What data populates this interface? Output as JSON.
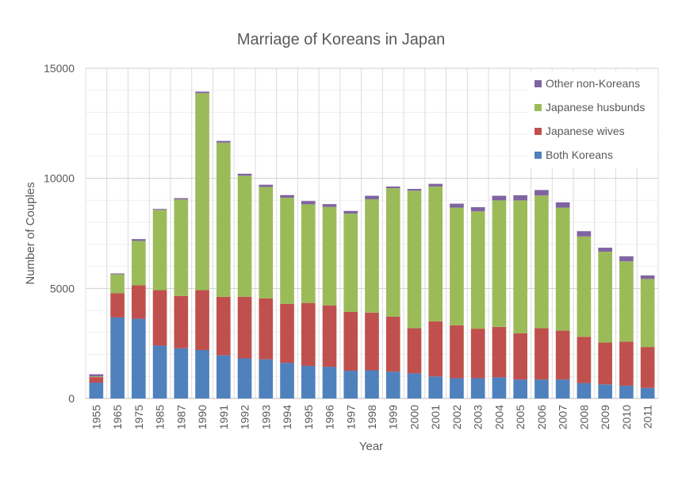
{
  "chart_data": {
    "type": "bar",
    "stacked": true,
    "title": "Marriage of Koreans in Japan",
    "xlabel": "Year",
    "ylabel": "Number of Couples",
    "ylim": [
      0,
      15000
    ],
    "yticks": [
      "0",
      "5000",
      "10000",
      "15000"
    ],
    "grid": true,
    "legend_position": "top-right",
    "categories": [
      "1955",
      "1965",
      "1975",
      "1985",
      "1987",
      "1990",
      "1991",
      "1992",
      "1993",
      "1994",
      "1995",
      "1996",
      "1997",
      "1998",
      "1999",
      "2000",
      "2001",
      "2002",
      "2003",
      "2004",
      "2005",
      "2006",
      "2007",
      "2008",
      "2009",
      "2010",
      "2011"
    ],
    "series": [
      {
        "name": "Both Koreans",
        "color": "#4f81bd",
        "values": [
          720,
          3680,
          3620,
          2400,
          2280,
          2200,
          1960,
          1820,
          1780,
          1620,
          1480,
          1440,
          1260,
          1280,
          1220,
          1140,
          1000,
          920,
          920,
          960,
          860,
          860,
          860,
          700,
          640,
          580,
          480
        ]
      },
      {
        "name": "Japanese wives",
        "color": "#c0504d",
        "values": [
          250,
          1100,
          1520,
          2520,
          2380,
          2720,
          2660,
          2800,
          2770,
          2680,
          2860,
          2790,
          2670,
          2620,
          2500,
          2050,
          2500,
          2400,
          2250,
          2290,
          2100,
          2330,
          2220,
          2100,
          1900,
          2000,
          1860
        ]
      },
      {
        "name": "Japanese husbunds",
        "color": "#9bbb59",
        "values": [
          30,
          860,
          2020,
          3650,
          4380,
          8950,
          7000,
          5500,
          5060,
          4820,
          4480,
          4470,
          4470,
          5150,
          5830,
          6250,
          6130,
          5350,
          5330,
          5750,
          6040,
          6030,
          5590,
          4560,
          4130,
          3650,
          3090
        ]
      },
      {
        "name": "Other non-Koreans",
        "color": "#8064a2",
        "values": [
          100,
          40,
          80,
          40,
          60,
          70,
          80,
          90,
          100,
          120,
          150,
          130,
          120,
          160,
          80,
          80,
          120,
          180,
          190,
          210,
          230,
          250,
          240,
          240,
          180,
          230,
          160
        ]
      }
    ]
  }
}
